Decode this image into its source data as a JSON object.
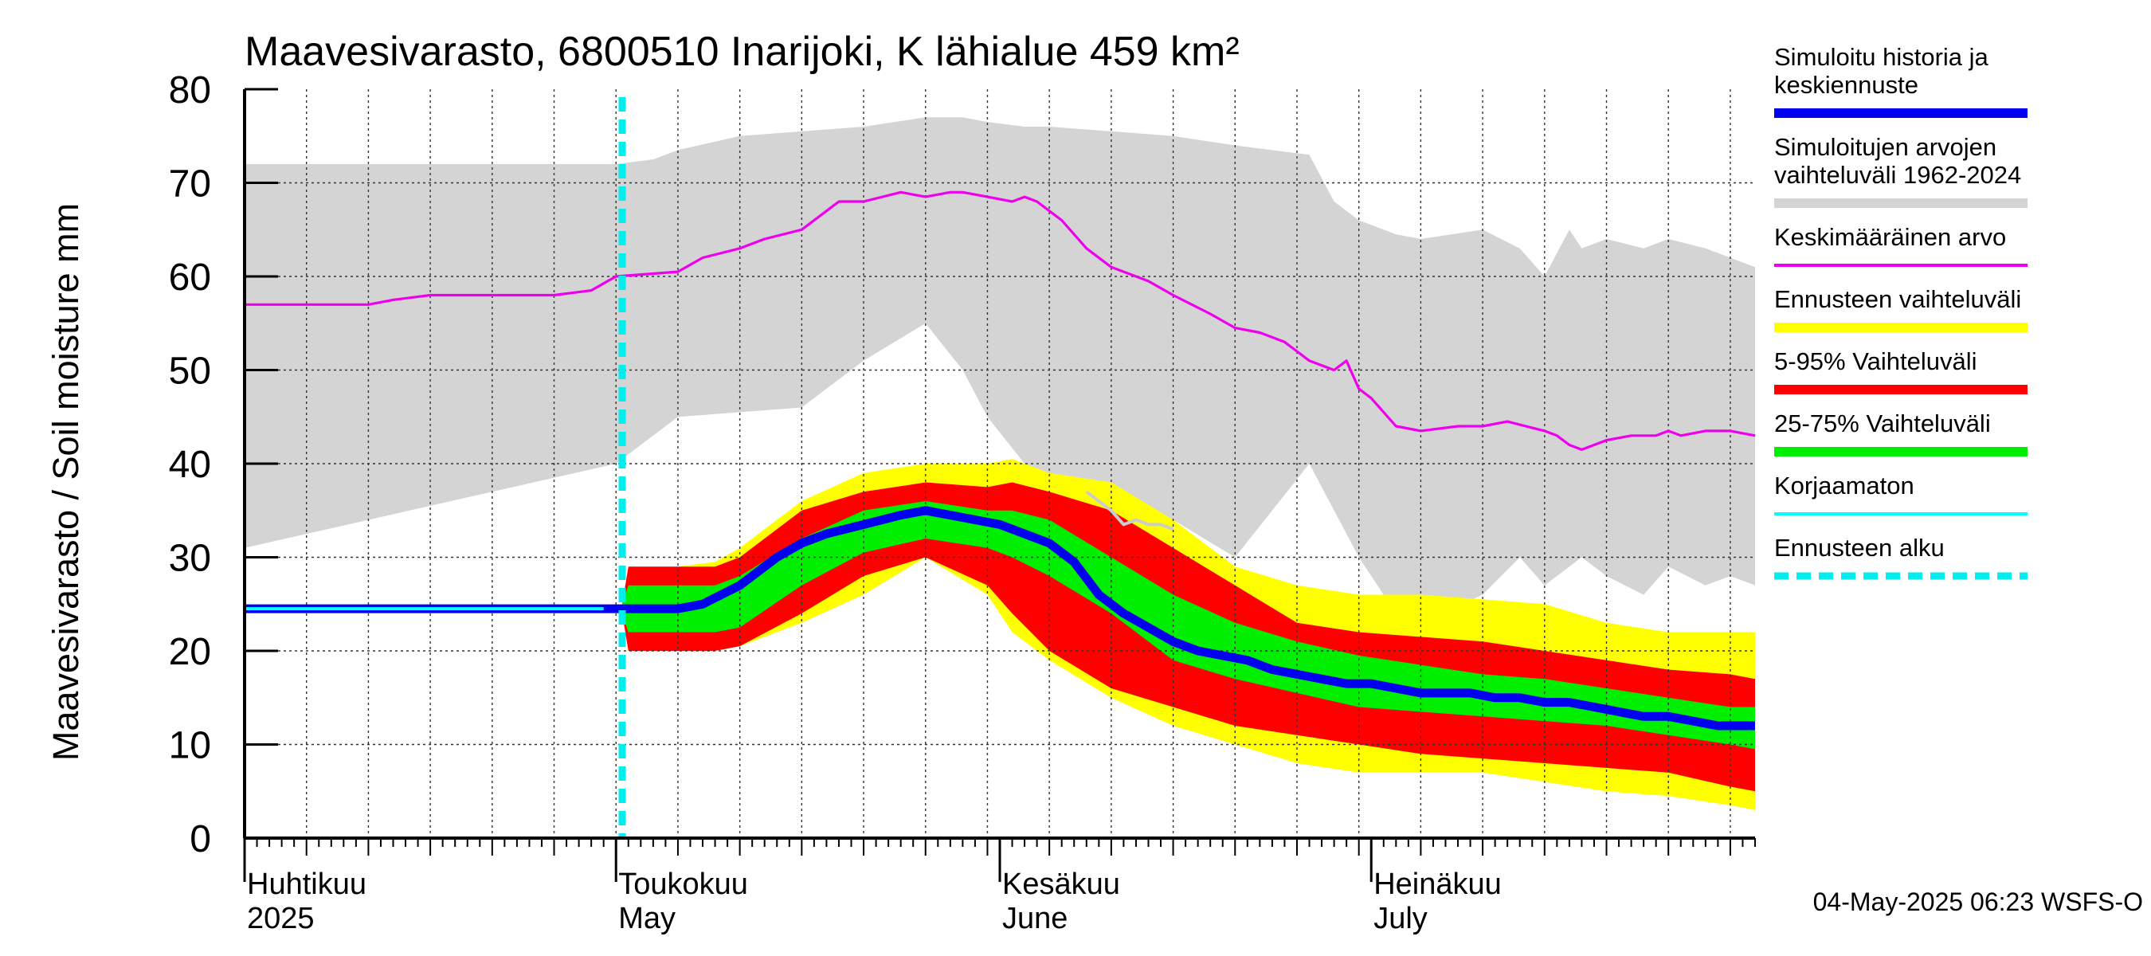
{
  "chart_data": {
    "type": "area",
    "title": "Maavesivarasto, 6800510 Inarijoki, K lähialue 459 km²",
    "ylabel": "Maavesivarasto / Soil moisture   mm",
    "xlabel": "",
    "ylim": [
      0,
      80
    ],
    "yticks": [
      0,
      10,
      20,
      30,
      40,
      50,
      60,
      70,
      80
    ],
    "xlim": [
      0,
      122
    ],
    "grid": true,
    "month_labels": [
      {
        "day": 0,
        "fi": "Huhtikuu",
        "en": "2025"
      },
      {
        "day": 30,
        "fi": "Toukokuu",
        "en": "May"
      },
      {
        "day": 61,
        "fi": "Kesäkuu",
        "en": "June"
      },
      {
        "day": 91,
        "fi": "Heinäkuu",
        "en": "July"
      }
    ],
    "forecast_start_day": 30.5,
    "x_days_note": "days since 1 April 2025",
    "series": [
      {
        "name": "Simuloitujen arvojen vaihteluväli 1962-2024",
        "role": "band",
        "color": "#d4d4d4",
        "x": [
          0,
          30,
          33,
          35,
          40,
          45,
          50,
          55,
          58,
          60,
          63,
          65,
          70,
          75,
          80,
          86,
          88,
          90,
          93,
          95,
          100,
          103,
          105,
          107,
          108,
          110,
          113,
          115,
          118,
          120,
          122
        ],
        "upper": [
          72,
          72,
          72.5,
          73.5,
          75,
          75.5,
          76,
          77,
          77,
          76.5,
          76,
          76,
          75.5,
          75,
          74,
          73,
          68,
          66,
          64.5,
          64,
          65,
          63,
          60,
          65,
          63,
          64,
          63,
          64,
          63,
          62,
          61
        ],
        "lower": [
          31,
          40,
          43,
          45,
          45.5,
          46,
          51,
          55,
          50,
          45,
          40,
          38,
          36,
          34,
          30,
          40,
          35,
          30,
          24,
          23,
          26,
          30,
          27,
          29,
          30,
          28,
          26,
          29,
          27,
          28,
          27
        ]
      },
      {
        "name": "Ennusteen vaihteluväli",
        "role": "band",
        "color": "#ffff00",
        "x": [
          30.5,
          31,
          35,
          38,
          40,
          45,
          50,
          55,
          60,
          62,
          65,
          70,
          75,
          80,
          85,
          90,
          95,
          100,
          105,
          110,
          115,
          120,
          122
        ],
        "upper": [
          25,
          29,
          29,
          29.5,
          31,
          36,
          39,
          40,
          40,
          40.5,
          39,
          38,
          34,
          29,
          27,
          26,
          26,
          25.5,
          25,
          23,
          22,
          22,
          22
        ],
        "lower": [
          24,
          20,
          20,
          20,
          20.5,
          23,
          26,
          30,
          26,
          22,
          19,
          15,
          12,
          10,
          8,
          7,
          7,
          7,
          6,
          5,
          4.5,
          3.5,
          3
        ]
      },
      {
        "name": "5-95% Vaihteluväli",
        "role": "band",
        "color": "#ff0000",
        "x": [
          30.5,
          31,
          35,
          38,
          40,
          45,
          50,
          55,
          60,
          62,
          65,
          70,
          75,
          80,
          85,
          90,
          95,
          100,
          105,
          110,
          115,
          120,
          122
        ],
        "upper": [
          25,
          29,
          29,
          29,
          30,
          35,
          37,
          38,
          37.5,
          38,
          37,
          35,
          31,
          27,
          23,
          22,
          21.5,
          21,
          20,
          19,
          18,
          17.5,
          17
        ],
        "lower": [
          24,
          20,
          20,
          20,
          20.5,
          24,
          28,
          30,
          27,
          24,
          20,
          16,
          14,
          12,
          11,
          10,
          9,
          8.5,
          8,
          7.5,
          7,
          5.5,
          5
        ]
      },
      {
        "name": "25-75% Vaihteluväli",
        "role": "band",
        "color": "#00ee00",
        "x": [
          30.5,
          31,
          35,
          38,
          40,
          45,
          50,
          55,
          60,
          62,
          65,
          70,
          75,
          80,
          85,
          90,
          95,
          100,
          105,
          110,
          115,
          120,
          122
        ],
        "upper": [
          25,
          27,
          27,
          27,
          28,
          32,
          35,
          36,
          35,
          35,
          34,
          30,
          26,
          23,
          21,
          19.5,
          18.5,
          17.5,
          17,
          16,
          15,
          14,
          14
        ],
        "lower": [
          24,
          22,
          22,
          22,
          22.5,
          27,
          30.5,
          32,
          31,
          30,
          28,
          24,
          19,
          17,
          15.5,
          14,
          13.5,
          13,
          12.5,
          12,
          11,
          10,
          9.5
        ]
      },
      {
        "name": "Keskimääräinen arvo",
        "role": "line",
        "color": "#ee00ee",
        "x": [
          0,
          10,
          12,
          15,
          20,
          25,
          28,
          30,
          35,
          37,
          40,
          42,
          45,
          47,
          48,
          50,
          53,
          55,
          57,
          58,
          60,
          62,
          63,
          64,
          65,
          66,
          68,
          70,
          72,
          73,
          75,
          78,
          80,
          82,
          84,
          85,
          86,
          88,
          89,
          90,
          91,
          93,
          95,
          98,
          100,
          102,
          105,
          106,
          107,
          108,
          110,
          112,
          114,
          115,
          116,
          118,
          120,
          122
        ],
        "y": [
          57,
          57,
          57.5,
          58,
          58,
          58,
          58.5,
          60,
          60.5,
          62,
          63,
          64,
          65,
          67,
          68,
          68,
          69,
          68.5,
          69,
          69,
          68.5,
          68,
          68.5,
          68,
          67,
          66,
          63,
          61,
          60,
          59.5,
          58,
          56,
          54.5,
          54,
          53,
          52,
          51,
          50,
          51,
          48,
          47,
          44,
          43.5,
          44,
          44,
          44.5,
          43.5,
          43,
          42,
          41.5,
          42.5,
          43,
          43,
          43.5,
          43,
          43.5,
          43.5,
          43
        ]
      },
      {
        "name": "Simuloitu historia ja keskiennuste",
        "role": "line",
        "color": "#0000ee",
        "x": [
          0,
          30.5,
          35,
          37,
          40,
          43,
          45,
          47,
          50,
          53,
          55,
          57,
          59,
          61,
          63,
          65,
          67,
          69,
          71,
          73,
          75,
          77,
          79,
          81,
          83,
          85,
          87,
          89,
          91,
          93,
          95,
          97,
          99,
          101,
          103,
          105,
          107,
          109,
          111,
          113,
          115,
          117,
          119,
          122
        ],
        "y": [
          24.5,
          24.5,
          24.5,
          25,
          27,
          30,
          31.5,
          32.5,
          33.5,
          34.5,
          35,
          34.5,
          34,
          33.5,
          32.5,
          31.5,
          29.5,
          26,
          24,
          22.5,
          21,
          20,
          19.5,
          19,
          18,
          17.5,
          17,
          16.5,
          16.5,
          16,
          15.5,
          15.5,
          15.5,
          15,
          15,
          14.5,
          14.5,
          14,
          13.5,
          13,
          13,
          12.5,
          12,
          12
        ]
      },
      {
        "name": "Korjaamaton",
        "role": "line",
        "color": "#00ffff",
        "x": [
          0,
          29
        ],
        "y": [
          24.5,
          24.5
        ]
      },
      {
        "name": "Korjaamaton (historia, ylempi)",
        "role": "line",
        "color": "#cccccc",
        "x": [
          68,
          70,
          71,
          72,
          73,
          74,
          75
        ],
        "y": [
          37,
          35,
          33.5,
          34,
          33.5,
          33.5,
          33
        ]
      }
    ]
  },
  "legend": {
    "items": [
      {
        "label_lines": [
          "Simuloitu historia ja",
          "keskiennuste"
        ],
        "color": "#0000ee",
        "style": "solid"
      },
      {
        "label_lines": [
          "Simuloitujen arvojen",
          "vaihteluväli 1962-2024"
        ],
        "color": "#d4d4d4",
        "style": "solid"
      },
      {
        "label_lines": [
          "Keskimääräinen arvo"
        ],
        "color": "#ee00ee",
        "style": "thin"
      },
      {
        "label_lines": [
          "Ennusteen vaihteluväli"
        ],
        "color": "#ffff00",
        "style": "solid"
      },
      {
        "label_lines": [
          "5-95% Vaihteluväli"
        ],
        "color": "#ff0000",
        "style": "solid"
      },
      {
        "label_lines": [
          "25-75% Vaihteluväli"
        ],
        "color": "#00ee00",
        "style": "solid"
      },
      {
        "label_lines": [
          "Korjaamaton"
        ],
        "color": "#00ffff",
        "style": "thin"
      },
      {
        "label_lines": [
          "Ennusteen alku"
        ],
        "color": "#00eeee",
        "style": "dashed"
      }
    ]
  },
  "footer": {
    "timestamp": "04-May-2025 06:23 WSFS-O"
  }
}
